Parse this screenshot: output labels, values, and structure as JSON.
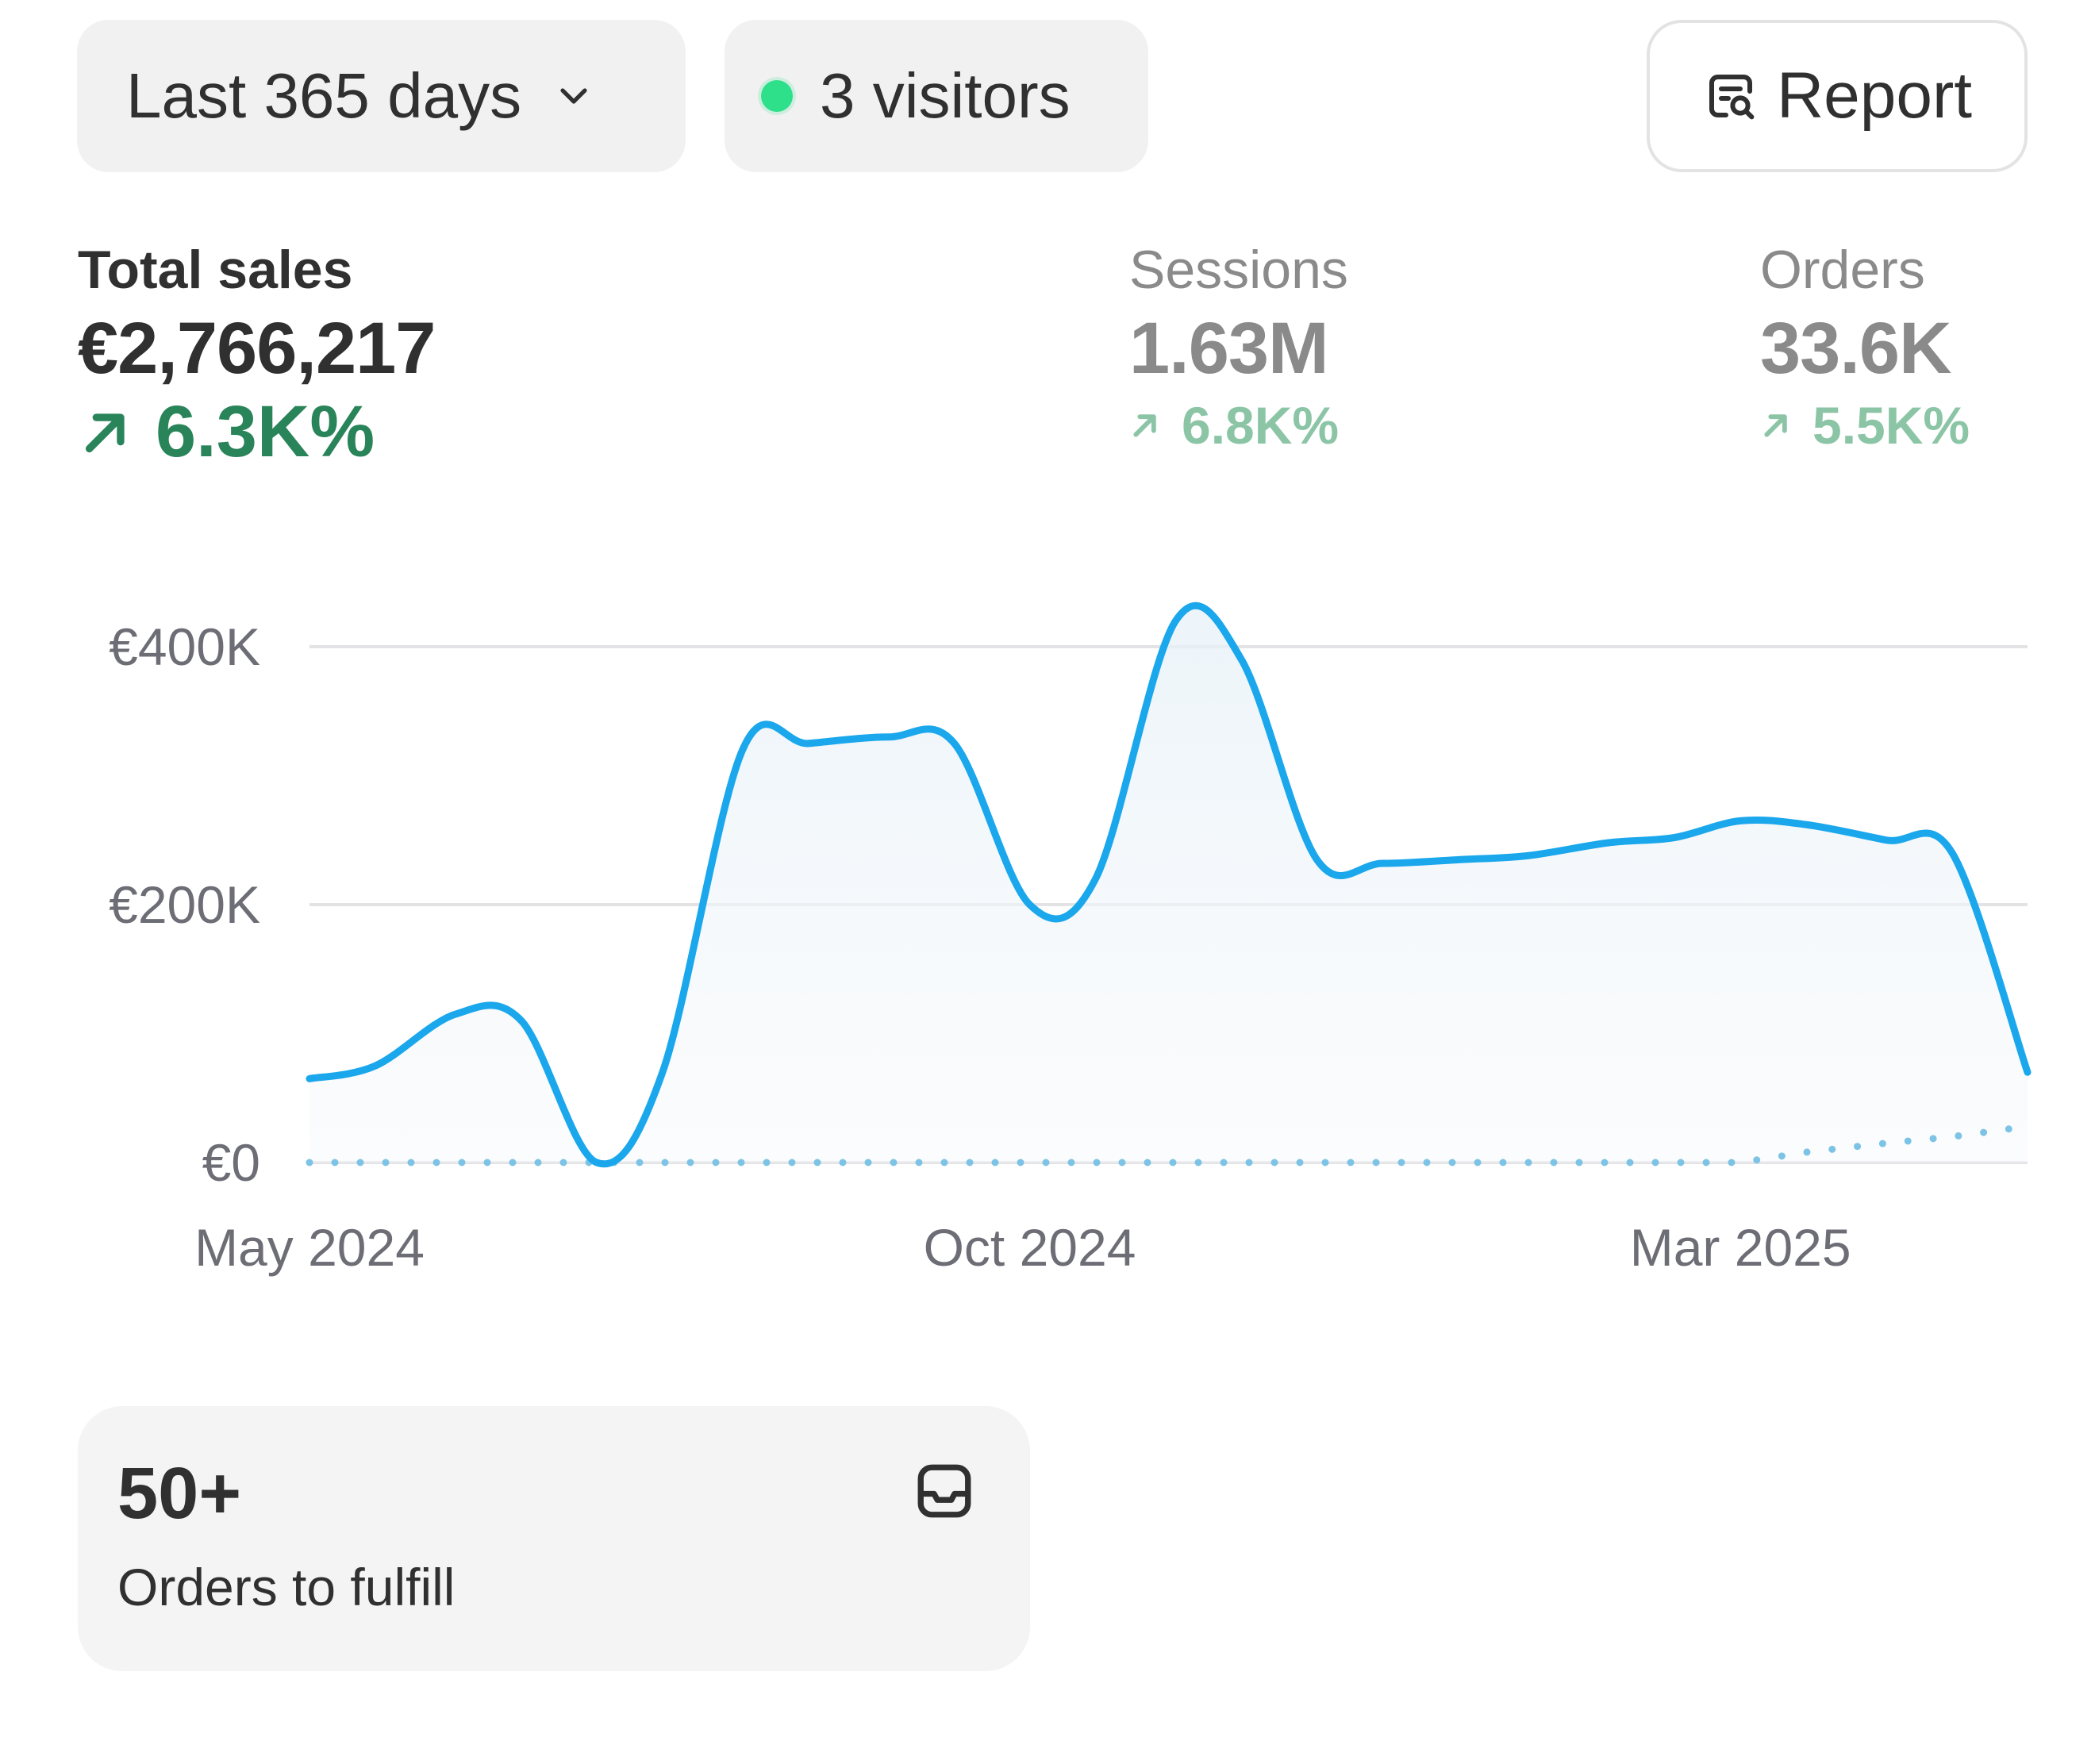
{
  "filters": {
    "date_range": "Last 365 days",
    "visitors": "3 visitors",
    "report_label": "Report"
  },
  "metrics": {
    "total_sales": {
      "label": "Total sales",
      "value": "€2,766,217",
      "delta": "6.3K%"
    },
    "sessions": {
      "label": "Sessions",
      "value": "1.63M",
      "delta": "6.8K%"
    },
    "orders": {
      "label": "Orders",
      "value": "33.6K",
      "delta": "5.5K%"
    }
  },
  "colors": {
    "line": "#1aa7ec",
    "comparison": "#7cc3e6",
    "positive": "#29845a",
    "live_dot": "#2fe08a"
  },
  "icons": {
    "chevron": "chevron-down-icon",
    "report": "report-search-icon",
    "trend": "arrow-up-right-icon",
    "inbox": "inbox-icon"
  },
  "chart_data": {
    "type": "line",
    "x_labels": [
      "May 2024",
      "Oct 2024",
      "Mar 2025"
    ],
    "y_ticks": [
      "€0",
      "€200K",
      "€400K"
    ],
    "ylim": [
      0,
      400000
    ],
    "grid": true,
    "series": [
      {
        "x": [
          "2024-05-01",
          "2024-05-15",
          "2024-06-01",
          "2024-06-15",
          "2024-07-01",
          "2024-07-15",
          "2024-08-01",
          "2024-08-15",
          "2024-09-01",
          "2024-09-15",
          "2024-10-01",
          "2024-10-15",
          "2024-11-01",
          "2024-11-15",
          "2024-12-01",
          "2024-12-15",
          "2025-01-01",
          "2025-01-15",
          "2025-02-01",
          "2025-02-15",
          "2025-03-01",
          "2025-03-15",
          "2025-04-01",
          "2025-04-15",
          "2025-05-01"
        ],
        "values": [
          65000,
          75000,
          115000,
          110000,
          0,
          70000,
          320000,
          325000,
          330000,
          325000,
          200000,
          220000,
          420000,
          390000,
          235000,
          232000,
          235000,
          238000,
          248000,
          252000,
          265000,
          262000,
          250000,
          240000,
          70000
        ]
      },
      {
        "style": "dotted",
        "x": [
          "2024-05-01",
          "2025-03-01",
          "2025-03-15",
          "2025-04-01",
          "2025-04-15",
          "2025-05-01"
        ],
        "values": [
          0,
          0,
          8000,
          15000,
          20000,
          28000
        ]
      }
    ]
  },
  "fulfill_card": {
    "count": "50+",
    "label": "Orders to fulfill"
  }
}
